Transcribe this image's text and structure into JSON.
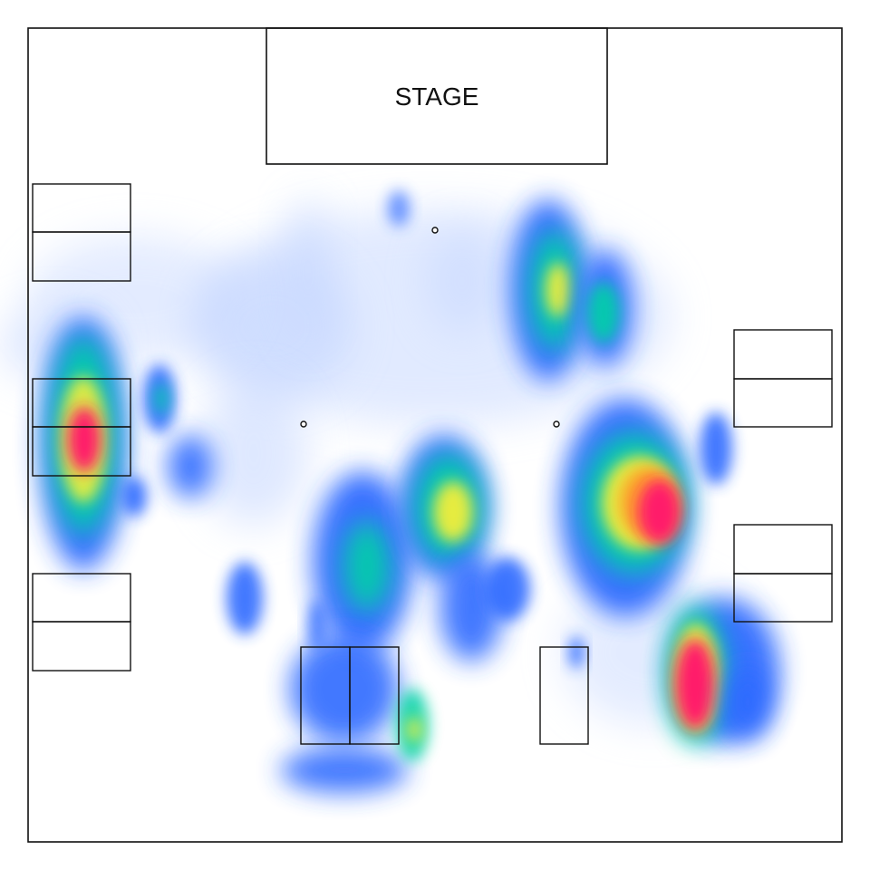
{
  "venue": {
    "stage_label": "STAGE"
  },
  "heatmap": {
    "color_scale": [
      "#ffffff",
      "#c9d9ff",
      "#2f6bff",
      "#00d2a6",
      "#f2ee3a",
      "#ff9b2a",
      "#ff1f6a"
    ]
  }
}
